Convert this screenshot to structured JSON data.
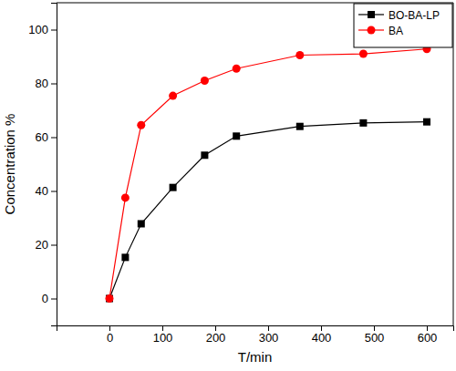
{
  "chart_data": {
    "type": "line",
    "x_label": "T/min",
    "y_label": "Concentration %",
    "x": [
      0,
      30,
      60,
      120,
      180,
      240,
      360,
      480,
      600
    ],
    "series": [
      {
        "name": "BO-BA-LP",
        "color": "#000000",
        "marker": "square",
        "values": [
          0,
          15.3,
          27.8,
          41.3,
          53.3,
          60.4,
          64.0,
          65.3,
          65.7
        ]
      },
      {
        "name": "BA",
        "color": "#ff0000",
        "marker": "circle",
        "values": [
          0,
          37.5,
          64.5,
          75.4,
          81.0,
          85.5,
          90.5,
          91.0,
          92.8
        ]
      }
    ],
    "xlim": [
      -100,
      650
    ],
    "xticks": [
      0,
      100,
      200,
      300,
      400,
      500,
      600
    ],
    "ylim": [
      -10,
      110
    ],
    "yticks": [
      0,
      20,
      40,
      60,
      80,
      100
    ],
    "legend": "top-right",
    "grid": false
  }
}
